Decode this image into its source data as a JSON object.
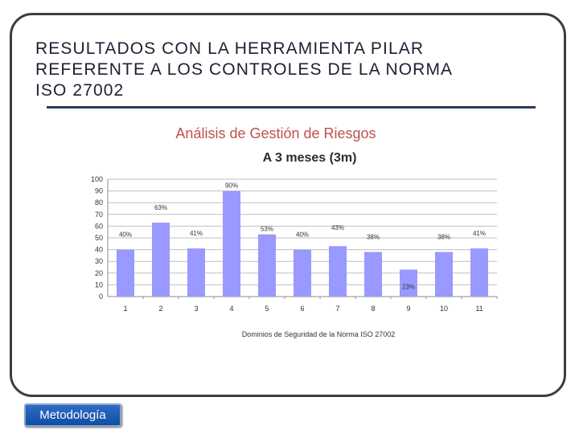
{
  "slide": {
    "title_line1": "RESULTADOS CON LA HERRAMIENTA PILAR",
    "title_line2": "REFERENTE A LOS CONTROLES  DE LA NORMA",
    "title_line3": "ISO 27002"
  },
  "chart_data": {
    "type": "bar",
    "title": "Análisis de Gestión de Riesgos",
    "subtitle": "A 3 meses (3m)",
    "xlabel": "Dominios de Seguridad de la Norma ISO 27002",
    "ylabel": "",
    "categories": [
      "1",
      "2",
      "3",
      "4",
      "5",
      "6",
      "7",
      "8",
      "9",
      "10",
      "11"
    ],
    "values": [
      40,
      63,
      41,
      90,
      53,
      40,
      43,
      38,
      23,
      38,
      41
    ],
    "data_labels": [
      "40%",
      "63%",
      "41%",
      "90%",
      "53%",
      "40%",
      "43%",
      "38%",
      "23%",
      "38%",
      "41%"
    ],
    "ylim": [
      0,
      100
    ],
    "yticks": [
      0,
      10,
      20,
      30,
      40,
      50,
      60,
      70,
      80,
      90,
      100
    ],
    "grid": true,
    "bar_color": "#9999ff",
    "title_color": "#c0504d"
  },
  "nav": {
    "metodologia_label": "Metodología"
  }
}
